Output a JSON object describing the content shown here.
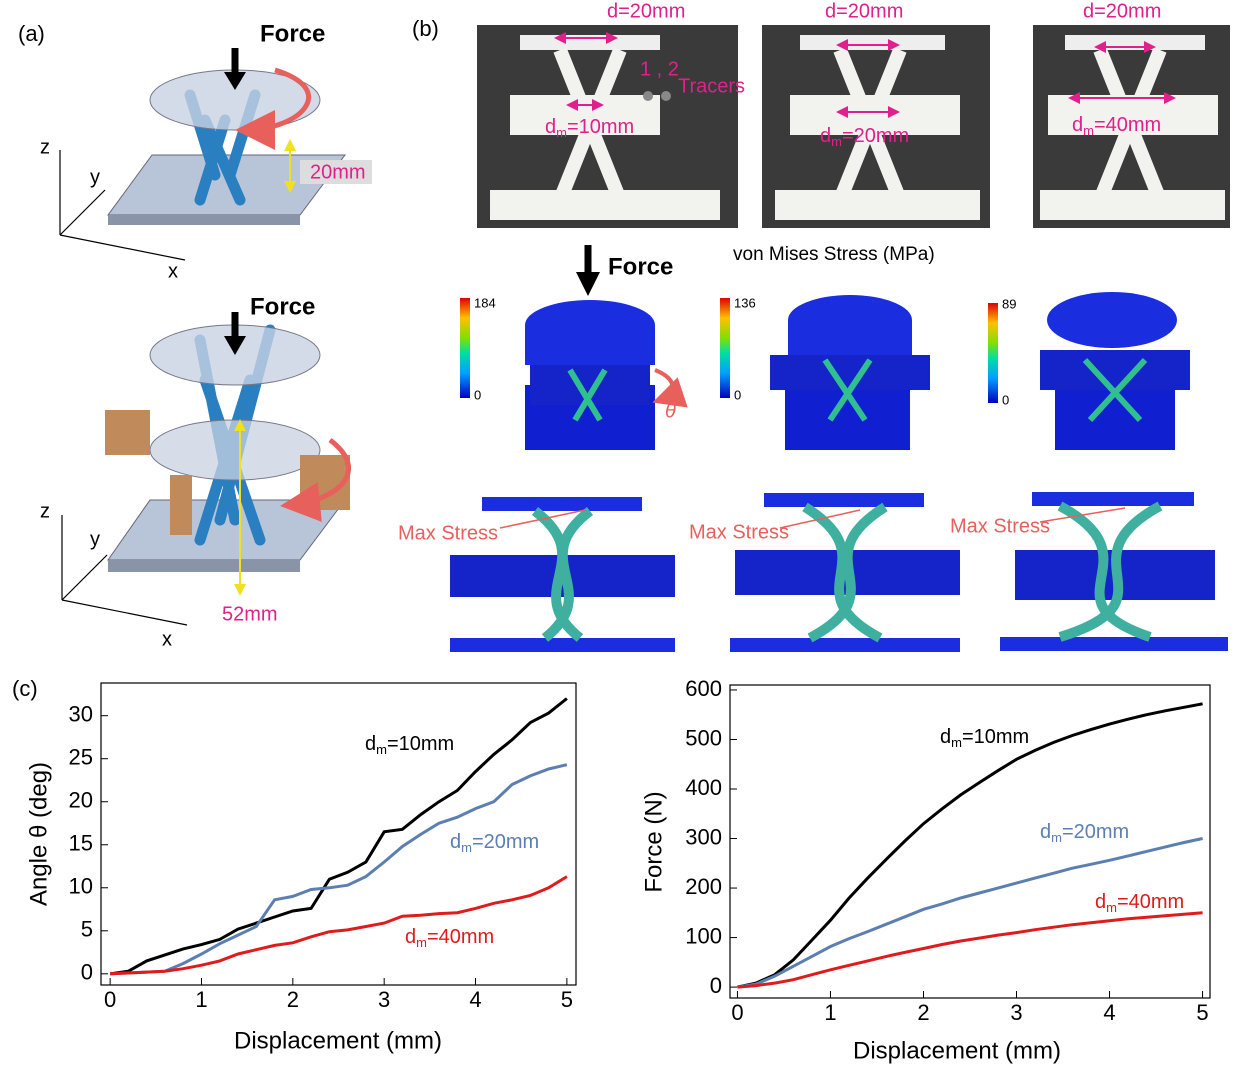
{
  "panel_a": {
    "label": "(a)",
    "top": {
      "force": "Force",
      "z": "z",
      "y": "y",
      "x": "x",
      "gap": "20mm"
    },
    "bottom": {
      "force": "Force",
      "z": "z",
      "y": "y",
      "x": "x",
      "height": "52mm"
    }
  },
  "panel_b": {
    "label": "(b)",
    "photos": [
      {
        "d": "d=20mm",
        "dm": "dm=10mm"
      },
      {
        "d": "d=20mm",
        "dm": "dm=20mm"
      },
      {
        "d": "d=20mm",
        "dm": "dm=40mm"
      }
    ],
    "tracer_ids": "1 , 2",
    "tracers": "Tracers",
    "force": "Force",
    "stress_title": "von Mises Stress (MPa)",
    "colorbars": [
      {
        "max": 184,
        "min": 0
      },
      {
        "max": 136,
        "min": 0
      },
      {
        "max": 89,
        "min": 0
      }
    ],
    "theta": "θ",
    "max_stress": [
      "Max Stress",
      "Max Stress",
      "Max Stress"
    ]
  },
  "panel_c": {
    "label": "(c)"
  },
  "chart_data": [
    {
      "type": "line",
      "x_label": "Displacement (mm)",
      "y_label": "Angle θ (deg)",
      "x": [
        0,
        0.2,
        0.4,
        0.6,
        0.8,
        1.0,
        1.2,
        1.4,
        1.6,
        1.8,
        2.0,
        2.2,
        2.4,
        2.6,
        2.8,
        3.0,
        3.2,
        3.4,
        3.6,
        3.8,
        4.0,
        4.2,
        4.4,
        4.6,
        4.8,
        5.0
      ],
      "series": [
        {
          "name": "dm=10mm",
          "color": "#000000",
          "values": [
            0,
            0.3,
            1.5,
            2.2,
            2.9,
            3.4,
            4.0,
            5.2,
            5.9,
            6.6,
            7.3,
            7.6,
            11,
            11.8,
            13,
            16.5,
            16.8,
            18.5,
            20,
            21.3,
            23.5,
            25.5,
            27.2,
            29.2,
            30.3,
            32
          ]
        },
        {
          "name": "dm=20mm",
          "color": "#5b7fb0",
          "values": [
            0,
            0.1,
            0.2,
            0.3,
            1.2,
            2.3,
            3.5,
            4.5,
            5.5,
            8.6,
            9.0,
            9.8,
            10,
            10.3,
            11.3,
            13,
            14.8,
            16.2,
            17.5,
            18.2,
            19.2,
            20,
            22,
            23,
            23.8,
            24.3
          ]
        },
        {
          "name": "dm=40mm",
          "color": "#e01b1b",
          "values": [
            0,
            0.1,
            0.2,
            0.3,
            0.6,
            1.0,
            1.5,
            2.3,
            2.8,
            3.3,
            3.6,
            4.3,
            4.9,
            5.1,
            5.5,
            5.9,
            6.7,
            6.8,
            7.0,
            7.1,
            7.6,
            8.2,
            8.6,
            9.1,
            10.0,
            11.3
          ]
        }
      ],
      "xlim": [
        -0.1,
        5.1
      ],
      "ylim": [
        -1.3,
        33.8
      ],
      "xticks": [
        0,
        1,
        2,
        3,
        4,
        5
      ],
      "yticks": [
        0,
        5,
        10,
        15,
        20,
        25,
        30
      ]
    },
    {
      "type": "line",
      "x_label": "Displacement (mm)",
      "y_label": "Force (N)",
      "x": [
        0,
        0.2,
        0.4,
        0.6,
        0.8,
        1.0,
        1.2,
        1.4,
        1.6,
        1.8,
        2.0,
        2.2,
        2.4,
        2.6,
        2.8,
        3.0,
        3.2,
        3.4,
        3.6,
        3.8,
        4.0,
        4.2,
        4.4,
        4.6,
        4.8,
        5.0
      ],
      "series": [
        {
          "name": "dm=10mm",
          "color": "#000000",
          "values": [
            0,
            8,
            25,
            55,
            95,
            135,
            180,
            220,
            258,
            295,
            330,
            360,
            388,
            413,
            437,
            460,
            478,
            494,
            508,
            520,
            531,
            541,
            550,
            558,
            565,
            572
          ]
        },
        {
          "name": "dm=20mm",
          "color": "#5b7fb0",
          "values": [
            0,
            6,
            22,
            42,
            62,
            82,
            98,
            112,
            127,
            142,
            157,
            168,
            180,
            190,
            200,
            210,
            220,
            230,
            240,
            248,
            256,
            265,
            274,
            283,
            292,
            300
          ]
        },
        {
          "name": "dm=40mm",
          "color": "#e01b1b",
          "values": [
            0,
            3,
            8,
            15,
            25,
            35,
            44,
            53,
            62,
            70,
            78,
            86,
            93,
            99,
            105,
            110,
            116,
            121,
            126,
            130,
            134,
            138,
            141,
            144,
            147,
            150
          ]
        }
      ],
      "xlim": [
        -0.08,
        5.08
      ],
      "ylim": [
        -22,
        610
      ],
      "xticks": [
        0,
        1,
        2,
        3,
        4,
        5
      ],
      "yticks": [
        0,
        100,
        200,
        300,
        400,
        500,
        600
      ]
    }
  ]
}
